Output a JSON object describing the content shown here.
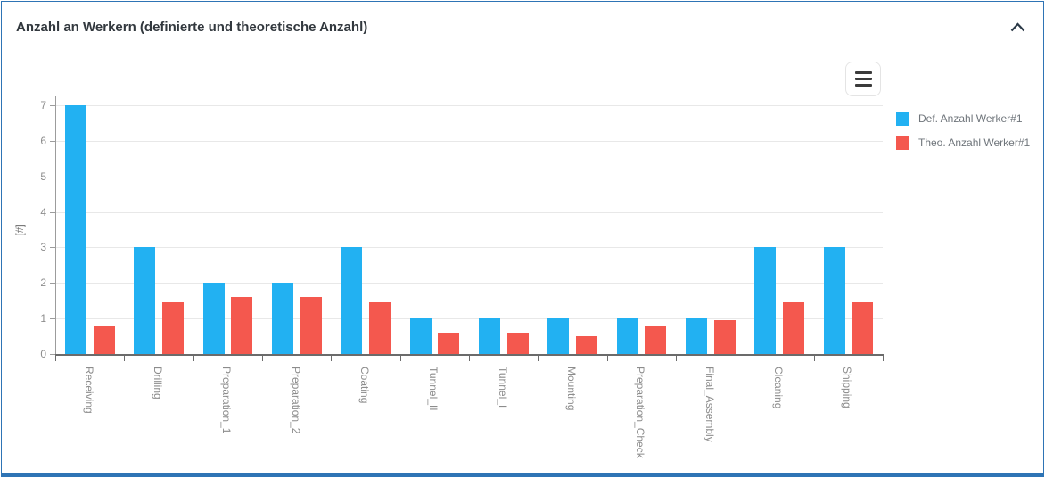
{
  "panel": {
    "title": "Anzahl an Werkern (definierte und theoretische Anzahl)"
  },
  "icons": {
    "collapse": "chevron-up",
    "menu": "hamburger-menu"
  },
  "colors": {
    "accent_border": "#2e74b5",
    "def_series": "#22b1f2",
    "theo_series": "#f4584e",
    "grid": "#e8e8e8",
    "axis_text": "#8c8c8c"
  },
  "chart_data": {
    "type": "bar",
    "title": "Anzahl an Werkern (definierte und theoretische Anzahl)",
    "xlabel": "",
    "ylabel": "[#]",
    "ylim": [
      0,
      7
    ],
    "yticks": [
      0,
      1,
      2,
      3,
      4,
      5,
      6,
      7
    ],
    "grid": true,
    "legend_position": "right",
    "categories": [
      "Receiving",
      "Drilling",
      "Preparation_1",
      "Preparation_2",
      "Coating",
      "Tunnel_II",
      "Tunnel_I",
      "Mounting",
      "Preparation_Check",
      "Final_Assembly",
      "Cleaning",
      "Shipping"
    ],
    "series": [
      {
        "name": "Def. Anzahl Werker#1",
        "color": "#22b1f2",
        "values": [
          7,
          3,
          2,
          2,
          3,
          1,
          1,
          1,
          1,
          1,
          3,
          3
        ]
      },
      {
        "name": "Theo. Anzahl Werker#1",
        "color": "#f4584e",
        "values": [
          0.8,
          1.45,
          1.6,
          1.6,
          1.45,
          0.6,
          0.6,
          0.5,
          0.8,
          0.95,
          1.45,
          1.45
        ]
      }
    ]
  }
}
